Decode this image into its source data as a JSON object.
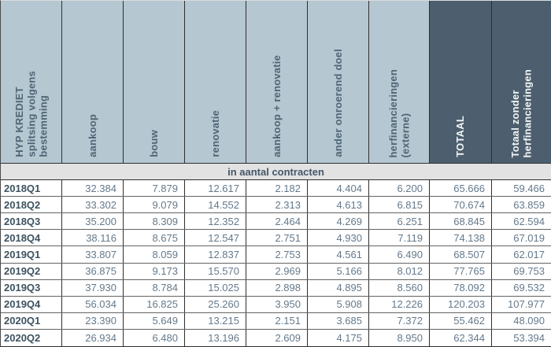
{
  "table": {
    "title": "HYP KREDIET splitsing volgens bestemming",
    "columns": [
      {
        "label": "HYP KREDIET\nsplitsing volgens\nbestemming",
        "dark": false
      },
      {
        "label": "aankoop",
        "dark": false
      },
      {
        "label": "bouw",
        "dark": false
      },
      {
        "label": "renovatie",
        "dark": false
      },
      {
        "label": "aankoop + renovatie",
        "dark": false
      },
      {
        "label": "ander onroerend doel",
        "dark": false
      },
      {
        "label": "herfinancieringen\n(externe)",
        "dark": false
      },
      {
        "label": "TOTAAL",
        "dark": true
      },
      {
        "label": "Totaal zonder\nherfinancieringen",
        "dark": true
      }
    ],
    "band_label": "in aantal contracten",
    "rows": [
      {
        "quarter": "2018Q1",
        "values": [
          "32.384",
          "7.879",
          "12.617",
          "2.182",
          "4.404",
          "6.200",
          "65.666",
          "59.466"
        ]
      },
      {
        "quarter": "2018Q2",
        "values": [
          "33.302",
          "9.079",
          "14.552",
          "2.313",
          "4.613",
          "6.815",
          "70.674",
          "63.859"
        ]
      },
      {
        "quarter": "2018Q3",
        "values": [
          "35.200",
          "8.309",
          "12.352",
          "2.464",
          "4.269",
          "6.251",
          "68.845",
          "62.594"
        ]
      },
      {
        "quarter": "2018Q4",
        "values": [
          "38.116",
          "8.675",
          "12.547",
          "2.751",
          "4.930",
          "7.119",
          "74.138",
          "67.019"
        ]
      },
      {
        "quarter": "2019Q1",
        "values": [
          "33.807",
          "8.059",
          "12.837",
          "2.753",
          "4.561",
          "6.490",
          "68.507",
          "62.017"
        ]
      },
      {
        "quarter": "2019Q2",
        "values": [
          "36.875",
          "9.173",
          "15.570",
          "2.969",
          "5.166",
          "8.012",
          "77.765",
          "69.753"
        ]
      },
      {
        "quarter": "2019Q3",
        "values": [
          "37.930",
          "8.784",
          "15.025",
          "2.898",
          "4.895",
          "8.560",
          "78.092",
          "69.532"
        ]
      },
      {
        "quarter": "2019Q4",
        "values": [
          "56.034",
          "16.825",
          "25.260",
          "3.950",
          "5.908",
          "12.226",
          "120.203",
          "107.977"
        ]
      },
      {
        "quarter": "2020Q1",
        "values": [
          "23.390",
          "5.649",
          "13.215",
          "2.151",
          "3.685",
          "7.372",
          "55.462",
          "48.090"
        ]
      },
      {
        "quarter": "2020Q2",
        "values": [
          "26.934",
          "6.480",
          "13.196",
          "2.609",
          "4.175",
          "8.950",
          "62.344",
          "53.394"
        ]
      }
    ]
  },
  "colors": {
    "header_light_bg": "#b5c7d1",
    "header_dark_bg": "#4d5f6e",
    "header_text": "#4e6574",
    "header_dark_text": "#f2f5f7",
    "band_bg": "#e2e2e2",
    "quarter_text": "#3d5260",
    "number_text": "#64798b"
  },
  "chart_data": {
    "type": "table",
    "title": "HYP KREDIET splitsing volgens bestemming",
    "unit_label": "in aantal contracten",
    "categories": [
      "2018Q1",
      "2018Q2",
      "2018Q3",
      "2018Q4",
      "2019Q1",
      "2019Q2",
      "2019Q3",
      "2019Q4",
      "2020Q1",
      "2020Q2"
    ],
    "series": [
      {
        "name": "aankoop",
        "values": [
          32384,
          33302,
          35200,
          38116,
          33807,
          36875,
          37930,
          56034,
          23390,
          26934
        ]
      },
      {
        "name": "bouw",
        "values": [
          7879,
          9079,
          8309,
          8675,
          8059,
          9173,
          8784,
          16825,
          5649,
          6480
        ]
      },
      {
        "name": "renovatie",
        "values": [
          12617,
          14552,
          12352,
          12547,
          12837,
          15570,
          15025,
          25260,
          13215,
          13196
        ]
      },
      {
        "name": "aankoop + renovatie",
        "values": [
          2182,
          2313,
          2464,
          2751,
          2753,
          2969,
          2898,
          3950,
          2151,
          2609
        ]
      },
      {
        "name": "ander onroerend doel",
        "values": [
          4404,
          4613,
          4269,
          4930,
          4561,
          5166,
          4895,
          5908,
          3685,
          4175
        ]
      },
      {
        "name": "herfinancieringen (externe)",
        "values": [
          6200,
          6815,
          6251,
          7119,
          6490,
          8012,
          8560,
          12226,
          7372,
          8950
        ]
      },
      {
        "name": "TOTAAL",
        "values": [
          65666,
          70674,
          68845,
          74138,
          68507,
          77765,
          78092,
          120203,
          55462,
          62344
        ]
      },
      {
        "name": "Totaal zonder herfinancieringen",
        "values": [
          59466,
          63859,
          62594,
          67019,
          62017,
          69753,
          69532,
          107977,
          48090,
          53394
        ]
      }
    ]
  }
}
